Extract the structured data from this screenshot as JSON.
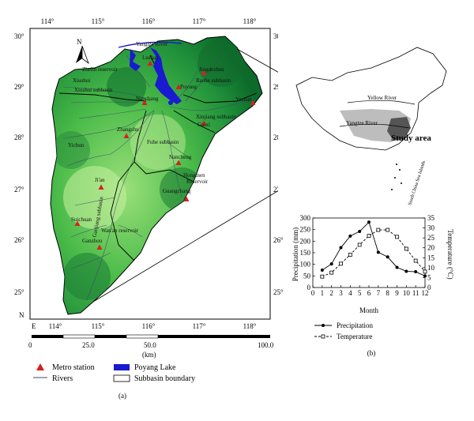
{
  "map": {
    "lon_ticks_top": [
      "114°",
      "115°",
      "116°",
      "117°",
      "118°"
    ],
    "lon_ticks_bottom": [
      "E",
      "114°",
      "115°",
      "116°",
      "117°",
      "118°"
    ],
    "lat_ticks_left": [
      "30°",
      "29°",
      "28°",
      "27°",
      "26°",
      "25°"
    ],
    "lat_ticks_right": [
      "30°",
      "29°",
      "28°",
      "27°",
      "26°",
      "25°"
    ],
    "north_label": "N",
    "bottom_N_label": "N",
    "places": [
      {
        "name": "Yangtze River",
        "kind": "label"
      },
      {
        "name": "Lushan",
        "kind": "station"
      },
      {
        "name": "Jingdezhen",
        "kind": "station"
      },
      {
        "name": "Zhelin reservoir",
        "kind": "label"
      },
      {
        "name": "Xiushui",
        "kind": "label"
      },
      {
        "name": "Xiushui subbasin",
        "kind": "label"
      },
      {
        "name": "Poyang",
        "kind": "station"
      },
      {
        "name": "Raohe subbasin",
        "kind": "label"
      },
      {
        "name": "Nanchang",
        "kind": "station"
      },
      {
        "name": "Yushan",
        "kind": "station"
      },
      {
        "name": "Xinjiang subbasin",
        "kind": "label"
      },
      {
        "name": "Guixi",
        "kind": "station"
      },
      {
        "name": "Zhangshu",
        "kind": "station"
      },
      {
        "name": "Yichun",
        "kind": "label"
      },
      {
        "name": "Fuhe subbasin",
        "kind": "label"
      },
      {
        "name": "Nancheng",
        "kind": "station"
      },
      {
        "name": "Hongmen",
        "kind": "label"
      },
      {
        "name": "Reservoir",
        "kind": "label"
      },
      {
        "name": "Ji'an",
        "kind": "station"
      },
      {
        "name": "Guangchang",
        "kind": "station"
      },
      {
        "name": "Ganjiang subbasin",
        "kind": "label"
      },
      {
        "name": "Suichuan",
        "kind": "station"
      },
      {
        "name": "Wan'an reservoir",
        "kind": "label"
      },
      {
        "name": "Ganzhou",
        "kind": "station"
      }
    ]
  },
  "inset": {
    "yellow_river": "Yellow River",
    "yangtze_river": "Yangtze River",
    "study_area": "Study area",
    "south_china_sea": "South China Sea Islands"
  },
  "scale": {
    "labels": [
      "0",
      "25.0",
      "50.0",
      "100.0"
    ],
    "unit": "(km)"
  },
  "legend": {
    "metro_station": "Metro station",
    "rivers": "Rivers",
    "poyang_lake": "Poyang Lake",
    "subbasin_boundary": "Subbasin boundary",
    "caption_a": "(a)"
  },
  "chart": {
    "caption_b": "(b)",
    "legend_precip": "Precipitation",
    "legend_temp": "Temperature"
  },
  "chart_data": {
    "type": "line",
    "x": [
      1,
      2,
      3,
      4,
      5,
      6,
      7,
      8,
      9,
      10,
      11,
      12
    ],
    "xlabel": "Month",
    "xticks": [
      "0",
      "1",
      "2",
      "3",
      "4",
      "5",
      "6",
      "7",
      "8",
      "9",
      "10",
      "11",
      "12"
    ],
    "xlim": [
      0,
      12
    ],
    "ylabel_left": "Precipitation (mm)",
    "ylabel_right": "Temperature (°C)",
    "ylim_left": [
      0,
      300
    ],
    "ylim_right": [
      0,
      35
    ],
    "yticks_left": [
      "0",
      "50",
      "100",
      "150",
      "200",
      "250",
      "300"
    ],
    "yticks_right": [
      "0",
      "5",
      "10",
      "15",
      "20",
      "25",
      "30",
      "35"
    ],
    "series": [
      {
        "name": "Precipitation",
        "axis": "left",
        "style": "solid-dot",
        "values": [
          75,
          102,
          172,
          222,
          242,
          282,
          152,
          132,
          87,
          70,
          68,
          50
        ]
      },
      {
        "name": "Temperature",
        "axis": "right",
        "style": "dashed-square",
        "values": [
          5.5,
          7.5,
          12,
          16.5,
          21.5,
          26,
          29,
          29,
          25.5,
          19.5,
          13.5,
          8
        ]
      }
    ]
  }
}
